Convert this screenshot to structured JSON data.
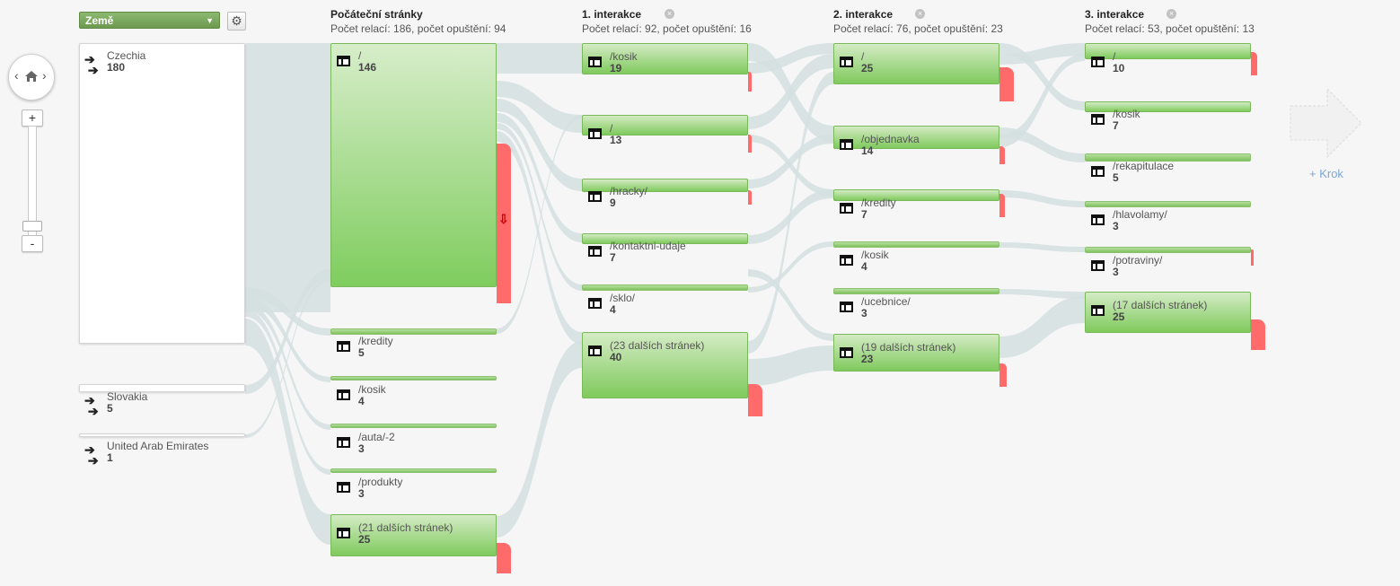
{
  "dimension_selector": {
    "label": "Země"
  },
  "columns": {
    "start": {
      "title": "Počáteční stránky",
      "stats": "Počet relací: 186, počet opuštění: 94"
    },
    "i1": {
      "title": "1. interakce",
      "stats": "Počet relací: 92, počet opuštění: 16"
    },
    "i2": {
      "title": "2. interakce",
      "stats": "Počet relací: 76, počet opuštění: 23"
    },
    "i3": {
      "title": "3. interakce",
      "stats": "Počet relací: 53, počet opuštění: 13"
    }
  },
  "countries": [
    {
      "name": "Czechia",
      "count": "180"
    },
    {
      "name": "Slovakia",
      "count": "5"
    },
    {
      "name": "United Arab Emirates",
      "count": "1"
    }
  ],
  "start_pages": [
    {
      "name": "/",
      "count": "146"
    },
    {
      "name": "/kredity",
      "count": "5"
    },
    {
      "name": "/kosik",
      "count": "4"
    },
    {
      "name": "/auta/-2",
      "count": "3"
    },
    {
      "name": "/produkty",
      "count": "3"
    },
    {
      "name": "(21 dalších stránek)",
      "count": "25"
    }
  ],
  "interaction1": [
    {
      "name": "/kosik",
      "count": "19"
    },
    {
      "name": "/",
      "count": "13"
    },
    {
      "name": "/hracky/",
      "count": "9"
    },
    {
      "name": "/kontaktni-udaje",
      "count": "7"
    },
    {
      "name": "/sklo/",
      "count": "4"
    },
    {
      "name": "(23 dalších stránek)",
      "count": "40"
    }
  ],
  "interaction2": [
    {
      "name": "/",
      "count": "25"
    },
    {
      "name": "/objednavka",
      "count": "14"
    },
    {
      "name": "/kredity",
      "count": "7"
    },
    {
      "name": "/kosik",
      "count": "4"
    },
    {
      "name": "/ucebnice/",
      "count": "3"
    },
    {
      "name": "(19 dalších stránek)",
      "count": "23"
    }
  ],
  "interaction3": [
    {
      "name": "/",
      "count": "10"
    },
    {
      "name": "/kosik",
      "count": "7"
    },
    {
      "name": "/rekapitulace",
      "count": "5"
    },
    {
      "name": "/hlavolamy/",
      "count": "3"
    },
    {
      "name": "/potraviny/",
      "count": "3"
    },
    {
      "name": "(17 dalších stránek)",
      "count": "25"
    }
  ],
  "add_step": {
    "label": "+ Krok"
  },
  "zoom": {
    "plus": "+",
    "minus": "-"
  },
  "drop_marker": "⇩",
  "colors": {
    "node_green": "#7fca5d",
    "drop_red": "#ff6b6b",
    "flow": "#d3dfe0",
    "link_blue": "#7aa7d6"
  }
}
